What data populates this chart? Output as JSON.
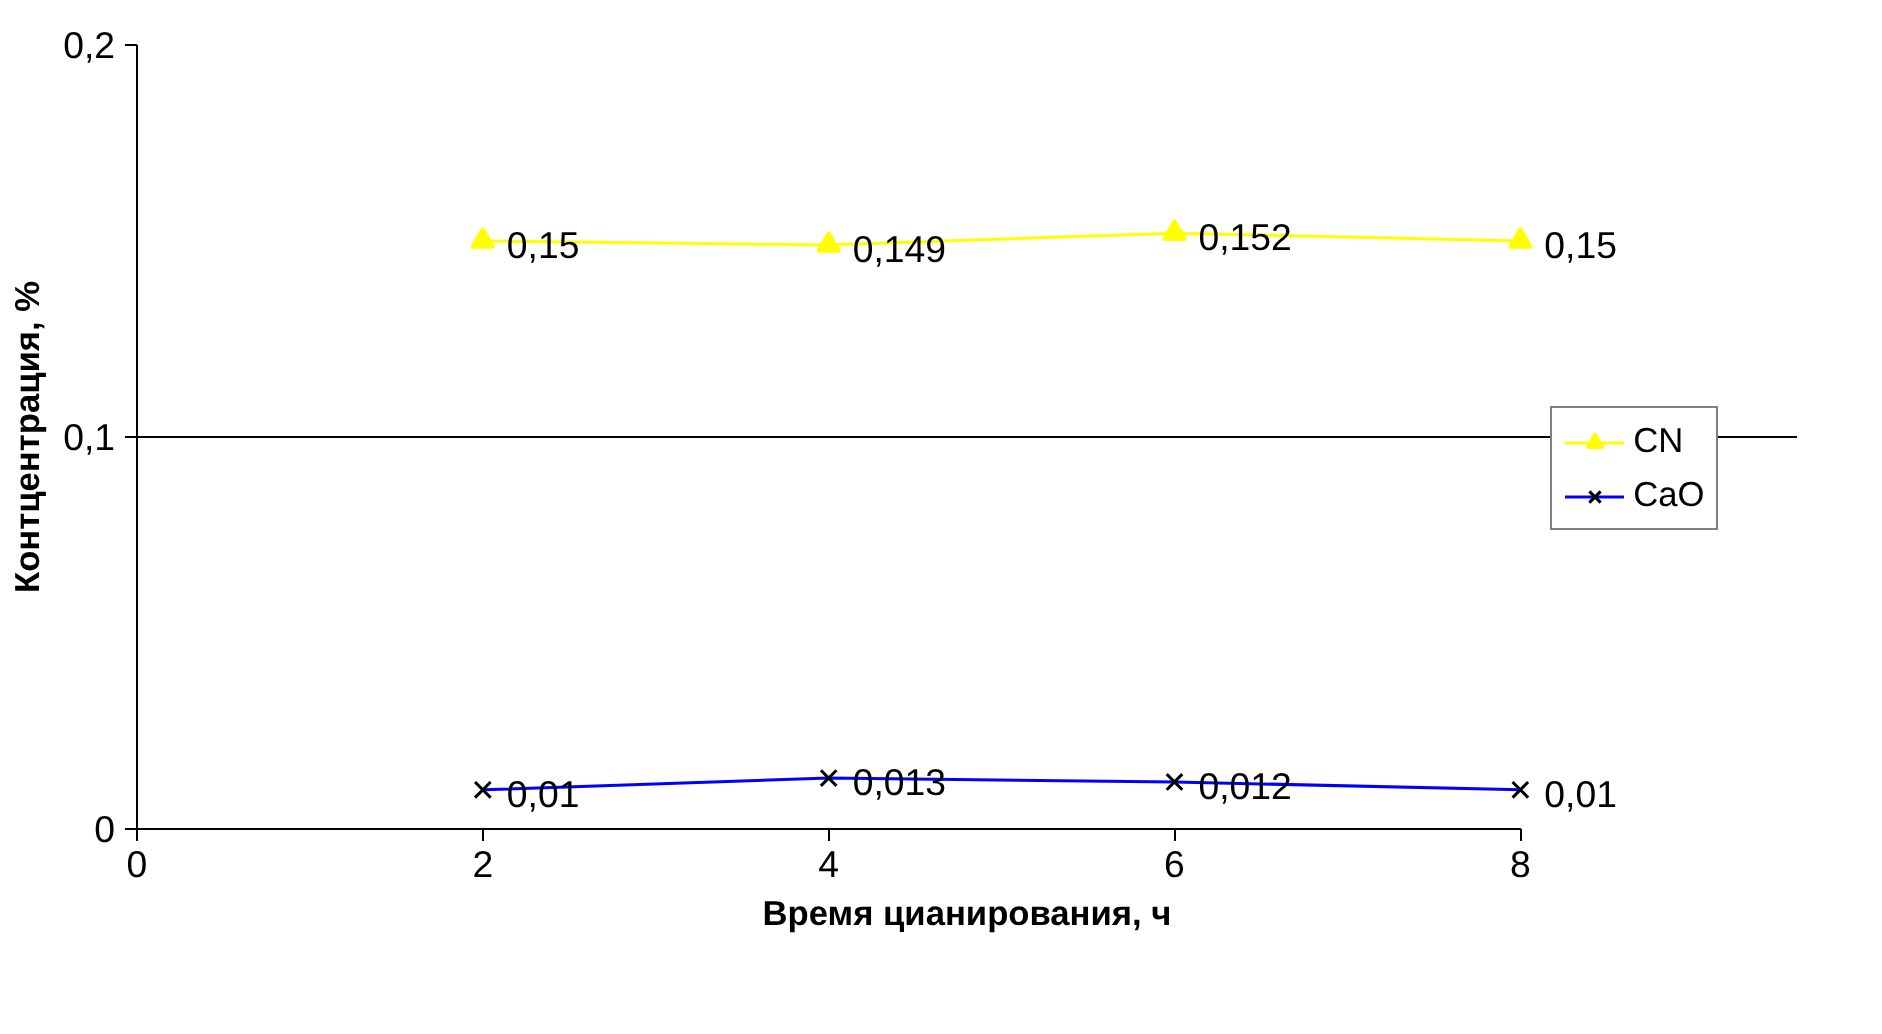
{
  "chart_data": {
    "type": "line",
    "xlabel": "Время цианирования, ч",
    "ylabel": "Контцентрация, %",
    "x": [
      2,
      4,
      6,
      8
    ],
    "series": [
      {
        "name": "CN",
        "color": "#ffff00",
        "marker": "triangle",
        "values": [
          0.15,
          0.149,
          0.152,
          0.15
        ],
        "value_labels": [
          "0,15",
          "0,149",
          "0,152",
          "0,15"
        ]
      },
      {
        "name": "CaO",
        "color": "#0000ff",
        "marker": "cross",
        "values": [
          0.01,
          0.013,
          0.012,
          0.01
        ],
        "value_labels": [
          "0,01",
          "0,013",
          "0,012",
          "0,01"
        ]
      }
    ],
    "xlim": [
      0,
      8
    ],
    "xticks": [
      0,
      2,
      4,
      6,
      8
    ],
    "ylim": [
      0,
      0.2
    ],
    "yticks": [
      {
        "value": 0,
        "label": "0"
      },
      {
        "value": 0.1,
        "label": "0,1"
      },
      {
        "value": 0.2,
        "label": "0,2"
      }
    ],
    "grid": "y",
    "legend": "right"
  }
}
